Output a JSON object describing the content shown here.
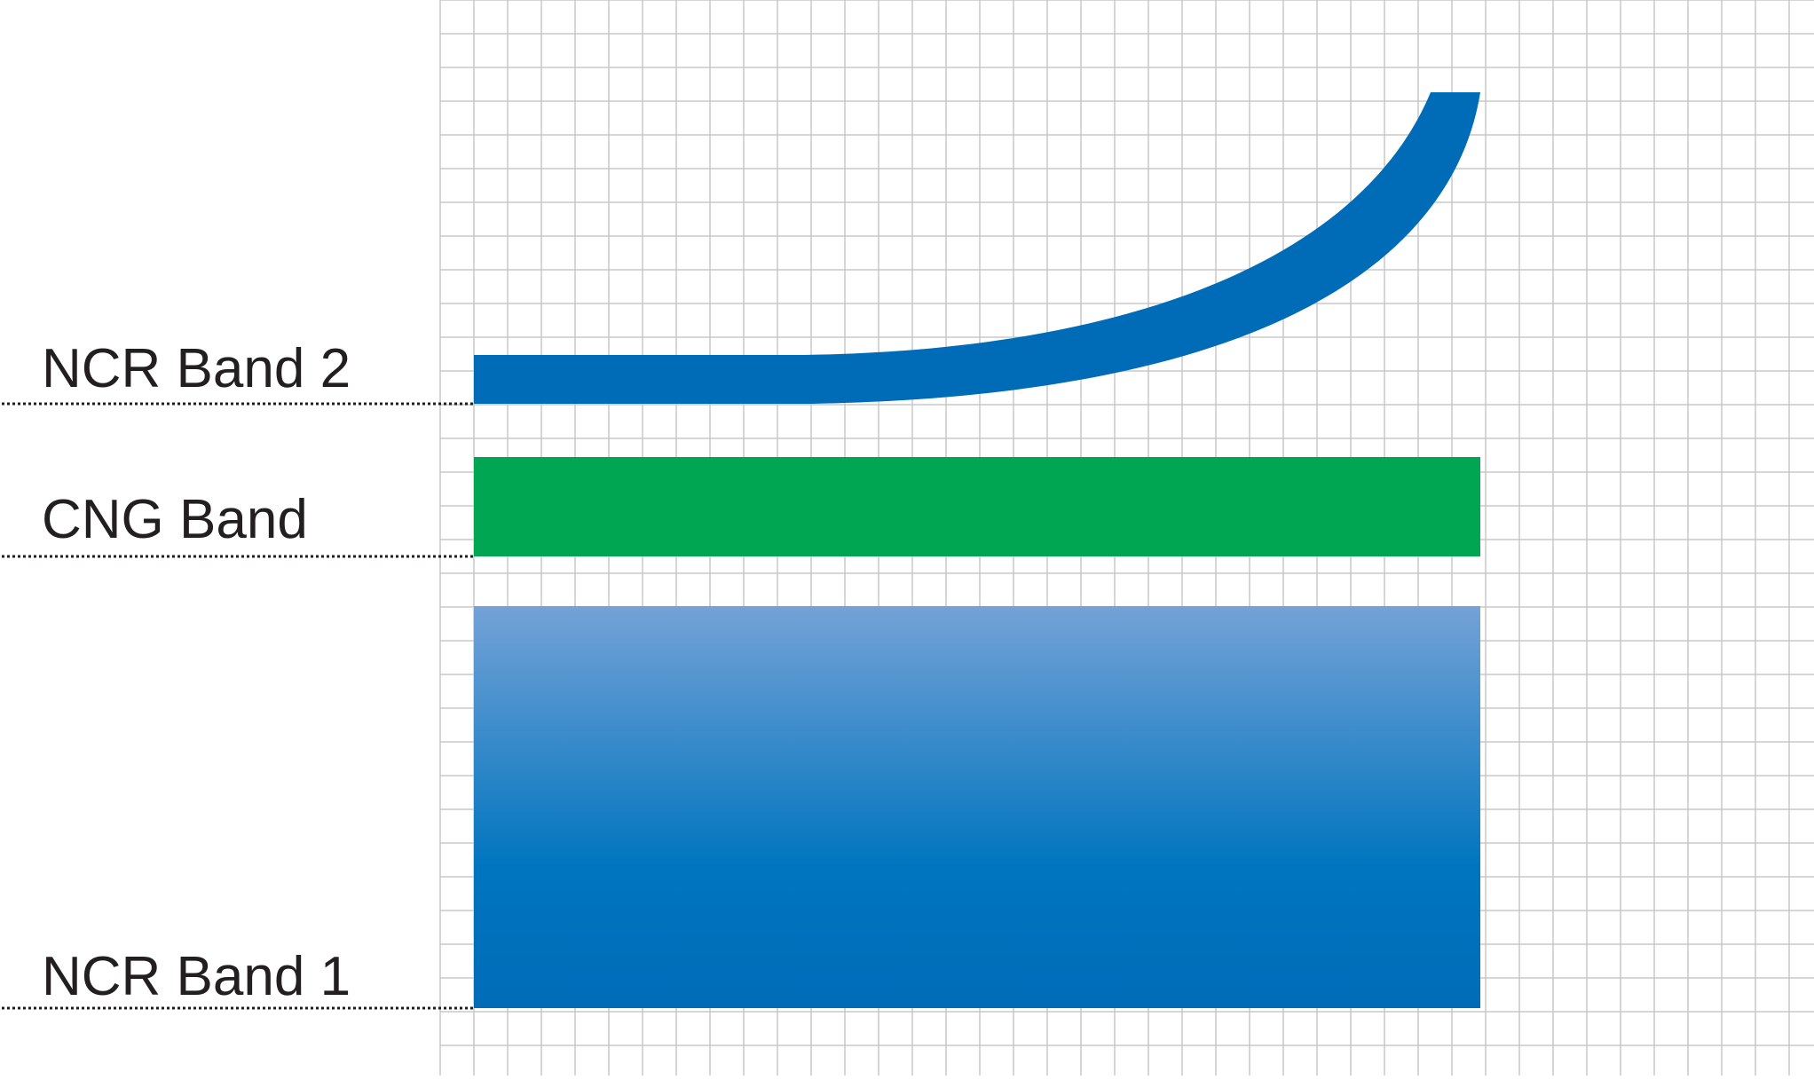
{
  "labels": {
    "ncr_band_2": "NCR Band 2",
    "cng_band": "CNG Band",
    "ncr_band_1": "NCR Band 1"
  },
  "colors": {
    "grid_line": "#c8c8c8",
    "ncr_band_2": "#006cb8",
    "cng_band": "#00a651",
    "ncr_band_1_top": "#74a2d6",
    "ncr_band_1_mid": "#0075bf",
    "ncr_band_1_bottom": "#006cb8",
    "leader_line": "#231f20",
    "text": "#231f20"
  }
}
